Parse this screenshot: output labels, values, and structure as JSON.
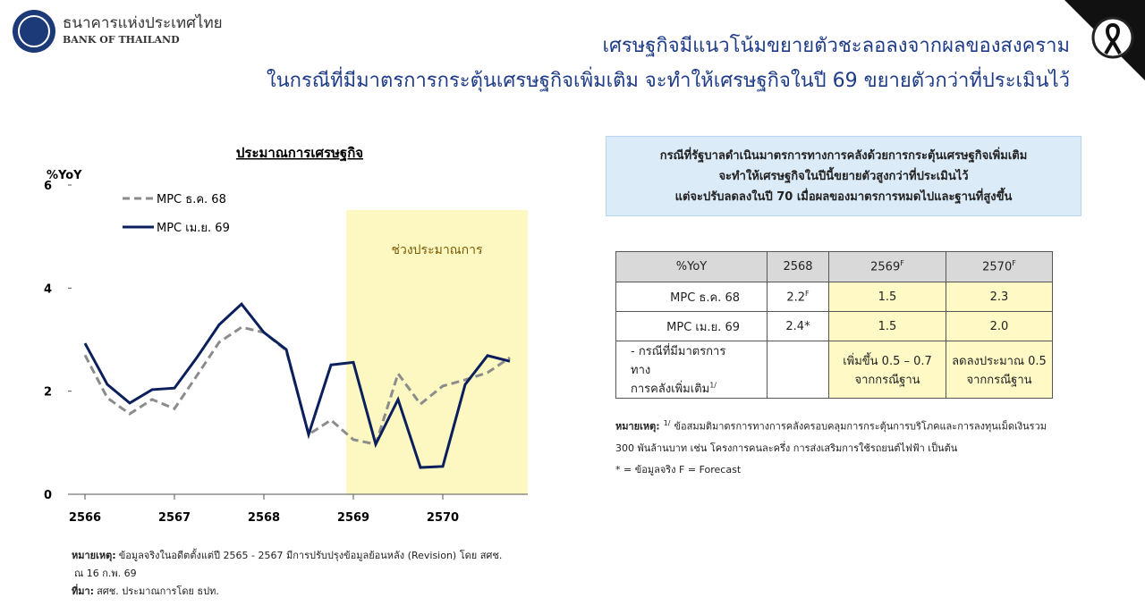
{
  "header": {
    "org_th": "ธนาคารแห่งประเทศไทย",
    "org_en": "BANK OF THAILAND",
    "title_lines": [
      "เศรษฐกิจมีแนวโน้มขยายตัวชะลอลงจากผลของสงคราม",
      "ในกรณีที่มีมาตรการกระตุ้นเศรษฐกิจเพิ่มเติม จะทำให้เศรษฐกิจในปี 69 ขยายตัวกว่าที่ประเมินไว้"
    ]
  },
  "chart_data": {
    "type": "line",
    "title": "ประมาณการเศรษฐกิจ",
    "y_label": "%YoY",
    "x": [
      2566,
      2566.25,
      2566.5,
      2566.75,
      2567,
      2567.25,
      2567.5,
      2567.75,
      2568,
      2568.25,
      2568.5,
      2568.75,
      2569,
      2569.25,
      2569.5,
      2569.75,
      2570,
      2570.25,
      2570.5,
      2570.75
    ],
    "series": [
      {
        "name": "MPC ธ.ค. 68",
        "color": "#8c8c8c",
        "dash": true,
        "values": [
          2.7,
          1.87,
          1.56,
          1.84,
          1.66,
          2.3,
          2.95,
          3.24,
          3.14,
          2.79,
          1.16,
          1.44,
          1.06,
          0.97,
          2.34,
          1.75,
          2.1,
          2.22,
          2.36,
          2.65
        ]
      },
      {
        "name": "MPC เม.ย. 69",
        "color": "#0b1f5c",
        "dash": false,
        "values": [
          2.93,
          2.13,
          1.77,
          2.03,
          2.06,
          2.65,
          3.29,
          3.69,
          3.14,
          2.81,
          1.16,
          2.51,
          2.56,
          0.97,
          1.84,
          0.52,
          0.54,
          2.13,
          2.69,
          2.58
        ]
      }
    ],
    "shade": {
      "from": 2568.92,
      "to": 2570.95,
      "label": "ช่วงประมาณการ",
      "color": "#fdf8c2"
    },
    "xlim": [
      2565.85,
      2570.95
    ],
    "xticks": [
      2566,
      2567,
      2568,
      2569,
      2570
    ],
    "ylim": [
      0,
      6
    ],
    "yticks": [
      0,
      2,
      4,
      6
    ]
  },
  "chart_notes": [
    {
      "label": "หมายเหตุ:",
      "text": "ข้อมูลจริงในอดีตตั้งแต่ปี 2565 - 2567 มีการปรับปรุงข้อมูลย้อนหลัง (Revision) โดย สศช."
    },
    {
      "text": "ณ 16 ก.พ. 69"
    },
    {
      "label": "ที่มา:",
      "text": "สศช. ประมาณการโดย ธปท."
    }
  ],
  "callout": [
    "กรณีที่รัฐบาลดำเนินมาตรการทางการคลังด้วยการกระตุ้นเศรษฐกิจเพิ่มเติม",
    "จะทำให้เศรษฐกิจในปีนี้ขยายตัวสูงกว่าที่ประเมินไว้",
    "แต่จะปรับลดลงในปี 70 เมื่อผลของมาตรการหมดไปและฐานที่สูงขึ้น"
  ],
  "table": {
    "header": [
      {
        "text": "%YoY"
      },
      {
        "text": "2568"
      },
      {
        "text": "2569",
        "sup": "F"
      },
      {
        "text": "2570",
        "sup": "F"
      }
    ],
    "rows": [
      [
        {
          "text": "MPC ธ.ค. 68"
        },
        {
          "text": "2.2",
          "sup": "F"
        },
        {
          "text": "1.5"
        },
        {
          "text": "2.3"
        }
      ],
      [
        {
          "text": "MPC เม.ย. 69"
        },
        {
          "text": "2.4*"
        },
        {
          "text": "1.5"
        },
        {
          "text": "2.0"
        }
      ],
      [
        {
          "text": "-  กรณีที่มีมาตรการทาง\nการคลังเพิ่มเติม",
          "sup": "1/"
        },
        null,
        {
          "text": "เพิ่มขึ้น 0.5 – 0.7\nจากกรณีฐาน"
        },
        {
          "text": "ลดลงประมาณ 0.5\nจากกรณีฐาน"
        }
      ]
    ]
  },
  "table_notes": {
    "label": "หมายเหตุ:",
    "sup": "1/",
    "lines": [
      "ข้อสมมติมาตรการทางการคลังครอบคลุมการกระตุ้นการบริโภคและการลงทุนเม็ดเงินรวม",
      "300 พันล้านบาท เช่น โครงการคนละครึ่ง การส่งเสริมการใช้รถยนต์ไฟฟ้า เป็นต้น"
    ],
    "legend_line": "* = ข้อมูลจริง F = Forecast"
  }
}
